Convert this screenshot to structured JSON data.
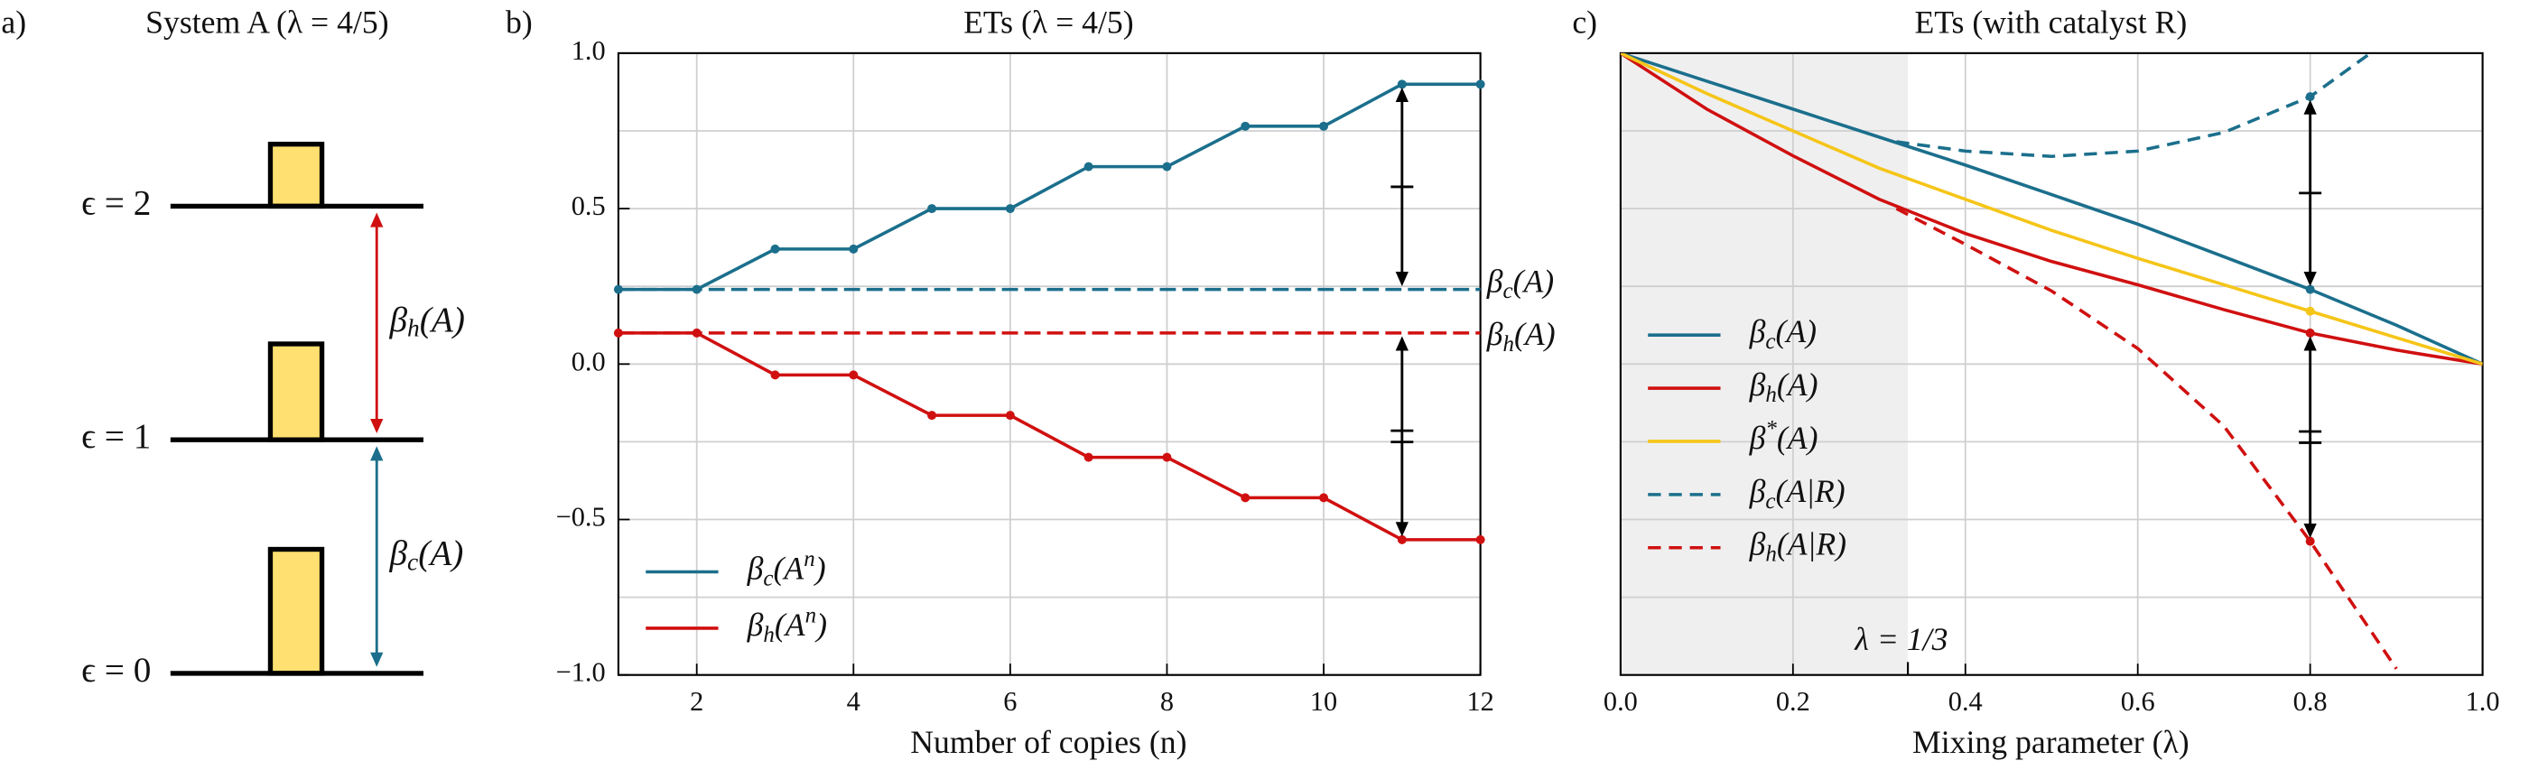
{
  "chart_data": [
    {
      "type": "levels",
      "panel": "a)",
      "title": "System A (λ = 4/5)",
      "levels": [
        "ϵ = 0",
        "ϵ = 1",
        "ϵ = 2"
      ],
      "populations": [
        0.44,
        0.34,
        0.22
      ],
      "bar_color": "#ffe070",
      "gaps": [
        {
          "label": "β_c(A)",
          "color": "#1b6f8c"
        },
        {
          "label": "β_h(A)",
          "color": "#d01010"
        }
      ]
    },
    {
      "type": "line",
      "panel": "b)",
      "title": "ETs (λ = 4/5)",
      "xlabel": "Number of copies (n)",
      "x": [
        1,
        2,
        3,
        4,
        5,
        6,
        7,
        8,
        9,
        10,
        11,
        12
      ],
      "series": [
        {
          "name": "β_c(A^n)",
          "color": "#1b6f8c",
          "values": [
            0.24,
            0.24,
            0.37,
            0.37,
            0.5,
            0.5,
            0.635,
            0.635,
            0.765,
            0.765,
            0.9,
            0.9
          ]
        },
        {
          "name": "β_h(A^n)",
          "color": "#d01010",
          "values": [
            0.1,
            0.1,
            -0.035,
            -0.035,
            -0.165,
            -0.165,
            -0.3,
            -0.3,
            -0.43,
            -0.43,
            -0.565,
            -0.565
          ]
        }
      ],
      "reference_lines": [
        {
          "label": "β_c(A)",
          "value": 0.24,
          "color": "#1b6f8c"
        },
        {
          "label": "β_h(A)",
          "value": 0.1,
          "color": "#d01010"
        }
      ],
      "arrow_x": 11,
      "xlim": [
        1,
        12
      ],
      "xticks": [
        2,
        4,
        6,
        8,
        10,
        12
      ],
      "ylim": [
        -1,
        1
      ],
      "yticks": [
        {
          "value": -1,
          "label": "−1.0"
        },
        {
          "value": -0.5,
          "label": "−0.5"
        },
        {
          "value": 0,
          "label": "0.0"
        },
        {
          "value": 0.5,
          "label": "0.5"
        },
        {
          "value": 1,
          "label": "1.0"
        }
      ],
      "ygrid": [
        -0.75,
        -0.25,
        0.25,
        0.75
      ],
      "grid": true,
      "legend": "lower left"
    },
    {
      "type": "line",
      "panel": "c)",
      "title": "ETs (with catalyst R)",
      "xlabel": "Mixing parameter (λ)",
      "series": [
        {
          "name": "β_c(A)",
          "color": "#1b6f8c",
          "dash": false,
          "x": [
            0,
            0.1,
            0.2,
            0.3,
            0.4,
            0.5,
            0.6,
            0.7,
            0.8,
            0.9,
            1
          ],
          "values": [
            1,
            0.91,
            0.82,
            0.73,
            0.64,
            0.545,
            0.45,
            0.345,
            0.24,
            0.125,
            0
          ]
        },
        {
          "name": "β_h(A)",
          "color": "#d01010",
          "dash": false,
          "x": [
            0,
            0.1,
            0.2,
            0.3,
            0.4,
            0.5,
            0.6,
            0.7,
            0.8,
            0.9,
            1
          ],
          "values": [
            1,
            0.82,
            0.67,
            0.53,
            0.42,
            0.33,
            0.255,
            0.175,
            0.1,
            0.045,
            0
          ]
        },
        {
          "name": "β^*(A)",
          "color": "#f5c518",
          "dash": false,
          "x": [
            0,
            0.1,
            0.2,
            0.3,
            0.4,
            0.5,
            0.6,
            0.7,
            0.8,
            0.9,
            1
          ],
          "values": [
            1,
            0.87,
            0.75,
            0.63,
            0.53,
            0.43,
            0.34,
            0.255,
            0.17,
            0.085,
            0
          ]
        },
        {
          "name": "β_c(A|R)",
          "color": "#1b6f8c",
          "dash": true,
          "x": [
            0.32,
            0.4,
            0.5,
            0.6,
            0.7,
            0.8,
            0.87
          ],
          "values": [
            0.715,
            0.685,
            0.668,
            0.685,
            0.745,
            0.86,
            1.0
          ]
        },
        {
          "name": "β_h(A|R)",
          "color": "#d01010",
          "dash": true,
          "x": [
            0.32,
            0.4,
            0.5,
            0.6,
            0.7,
            0.8,
            0.9
          ],
          "values": [
            0.5,
            0.385,
            0.235,
            0.05,
            -0.2,
            -0.57,
            -0.98
          ]
        }
      ],
      "marker_x": 0.8,
      "annotation": {
        "text": "λ = 1/3",
        "x": 0.3333
      },
      "xlim": [
        0,
        1
      ],
      "xticks": [
        {
          "value": 0,
          "label": "0.0"
        },
        {
          "value": 0.2,
          "label": "0.2"
        },
        {
          "value": 0.4,
          "label": "0.4"
        },
        {
          "value": 0.6,
          "label": "0.6"
        },
        {
          "value": 0.8,
          "label": "0.8"
        },
        {
          "value": 1,
          "label": "1.0"
        }
      ],
      "ylim": [
        -1,
        1
      ],
      "ygrid": [
        -0.75,
        -0.5,
        -0.25,
        0,
        0.25,
        0.5,
        0.75
      ],
      "grid": true,
      "legend": "center left"
    }
  ]
}
